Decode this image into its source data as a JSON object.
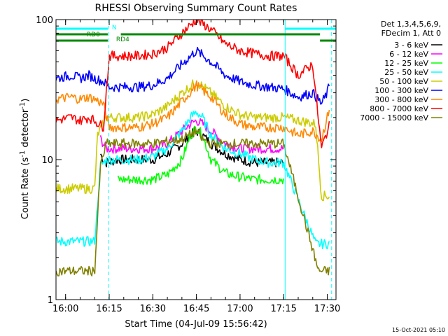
{
  "chart_data": {
    "type": "line",
    "title": "RHESSI Observing Summary Count Rates",
    "xlabel": "Start Time (04-Jul-09 15:56:42)",
    "ylabel": "Count Rate (s⁻¹ detector⁻¹)",
    "y_scale": "log",
    "ylim": [
      1,
      100
    ],
    "xlim": [
      "15:56:42",
      "17:33:00"
    ],
    "x_ticks": [
      "16:00",
      "16:15",
      "16:30",
      "16:45",
      "17:00",
      "17:15",
      "17:30"
    ],
    "y_ticks": [
      "1",
      "10",
      "100"
    ],
    "grid": false,
    "legend_position": "right",
    "legend_header": [
      "Det 1,3,4,5,6,9,",
      "FDecim 1, Att 0"
    ],
    "timestamp": "15-Oct-2021 05:10",
    "state_bars": [
      {
        "label": "N",
        "color": "#00ffff",
        "segments": [
          [
            "15:56:42",
            "16:14:30"
          ],
          [
            "17:15:30",
            "17:33:00"
          ]
        ]
      },
      {
        "label": "RD0",
        "color": "#008800",
        "segments": [
          [
            "15:56:42",
            "16:14:30"
          ],
          [
            "16:19:00",
            "17:27:30"
          ]
        ]
      },
      {
        "label": "RD4",
        "color": "#008800",
        "segments": [
          [
            "15:56:42",
            "16:14:30"
          ],
          [
            "17:27:30",
            "17:33:00"
          ]
        ]
      }
    ],
    "vertical_markers": [
      {
        "time": "16:14:50",
        "color": "#00ffff",
        "style": "dashed"
      },
      {
        "time": "17:15:30",
        "color": "#00ffff",
        "style": "solid"
      },
      {
        "time": "17:31:30",
        "color": "#00ffff",
        "style": "dashed"
      }
    ],
    "series": [
      {
        "name": "3 - 6 keV",
        "color": "#000000",
        "x": [
          "16:12",
          "16:13",
          "16:14",
          "16:18",
          "16:25",
          "16:30",
          "16:35",
          "16:40",
          "16:43",
          "16:45",
          "16:47",
          "16:50",
          "16:55",
          "17:00",
          "17:05",
          "17:10",
          "17:15"
        ],
        "y": [
          11,
          10,
          9.5,
          10,
          10,
          10,
          11,
          13,
          15,
          16,
          15,
          13,
          11,
          10,
          9.5,
          9.5,
          9.5
        ]
      },
      {
        "name": "6 - 12 keV",
        "color": "#ff00ff",
        "x": [
          "16:12",
          "16:13",
          "16:14",
          "16:18",
          "16:25",
          "16:30",
          "16:35",
          "16:40",
          "16:43",
          "16:45",
          "16:47",
          "16:50",
          "16:55",
          "17:00",
          "17:05",
          "17:10",
          "17:15"
        ],
        "y": [
          14,
          13,
          12,
          12,
          12,
          12,
          13,
          16,
          18,
          19,
          18,
          16,
          13,
          12,
          12,
          12,
          12
        ]
      },
      {
        "name": "12 - 25 keV",
        "color": "#00ff00",
        "x": [
          "16:18",
          "16:25",
          "16:30",
          "16:35",
          "16:40",
          "16:43",
          "16:45",
          "16:47",
          "16:50",
          "16:55",
          "17:00",
          "17:05",
          "17:10",
          "17:15"
        ],
        "y": [
          7.2,
          7.2,
          7.2,
          7.8,
          10,
          15,
          17,
          15,
          10,
          8,
          7.5,
          7.2,
          7.2,
          7.2
        ]
      },
      {
        "name": "25 - 50 keV",
        "color": "#00ffff",
        "x": [
          "15:56:42",
          "16:05",
          "16:10",
          "16:12",
          "16:14",
          "16:18",
          "16:25",
          "16:30",
          "16:35",
          "16:40",
          "16:43",
          "16:45",
          "16:47",
          "16:50",
          "16:55",
          "17:00",
          "17:05",
          "17:10",
          "17:15",
          "17:26",
          "17:28",
          "17:31"
        ],
        "y": [
          2.6,
          2.6,
          2.6,
          9,
          10,
          10,
          10,
          10.5,
          12,
          16,
          20,
          22,
          20,
          15,
          12,
          11,
          10,
          9.5,
          9.5,
          2.5,
          2.5,
          2.5
        ]
      },
      {
        "name": "50 - 100 keV",
        "color": "#cccc00",
        "x": [
          "15:56:42",
          "16:05",
          "16:10",
          "16:11",
          "16:14",
          "16:18",
          "16:25",
          "16:30",
          "16:35",
          "16:40",
          "16:45",
          "16:50",
          "16:55",
          "17:00",
          "17:05",
          "17:10",
          "17:15",
          "17:26",
          "17:28",
          "17:31"
        ],
        "y": [
          6.2,
          6.2,
          6.2,
          15,
          20,
          20,
          20,
          21,
          24,
          30,
          36,
          30,
          24,
          21,
          20,
          20,
          20,
          18,
          5.5,
          5.5
        ]
      },
      {
        "name": "100 - 300 keV",
        "color": "#0000ff",
        "x": [
          "15:56:42",
          "16:02",
          "16:05",
          "16:08",
          "16:10",
          "16:13",
          "16:15",
          "16:20",
          "16:25",
          "16:30",
          "16:35",
          "16:40",
          "16:45",
          "16:50",
          "16:55",
          "17:00",
          "17:05",
          "17:10",
          "17:15",
          "17:20",
          "17:25",
          "17:28",
          "17:30",
          "17:31"
        ],
        "y": [
          38,
          40,
          38,
          40,
          38,
          36,
          33,
          33,
          33,
          34,
          38,
          48,
          60,
          50,
          40,
          36,
          34,
          33,
          32,
          28,
          30,
          25,
          30,
          36
        ]
      },
      {
        "name": "300 - 800 keV",
        "color": "#ff8800",
        "x": [
          "15:56:42",
          "16:02",
          "16:05",
          "16:08",
          "16:10",
          "16:13",
          "16:15",
          "16:20",
          "16:25",
          "16:30",
          "16:35",
          "16:40",
          "16:45",
          "16:50",
          "16:55",
          "17:00",
          "17:05",
          "17:10",
          "17:15",
          "17:20",
          "17:25",
          "17:28",
          "17:30",
          "17:31"
        ],
        "y": [
          27,
          28,
          27,
          28,
          27,
          25,
          17,
          17,
          17,
          18,
          20,
          26,
          34,
          28,
          21,
          18,
          17,
          17,
          17,
          15,
          16,
          14,
          20,
          25
        ]
      },
      {
        "name": "800 - 7000 keV",
        "color": "#ff0000",
        "x": [
          "15:56:42",
          "16:02",
          "16:05",
          "16:08",
          "16:10",
          "16:13",
          "16:15",
          "16:20",
          "16:25",
          "16:30",
          "16:35",
          "16:40",
          "16:45",
          "16:50",
          "16:55",
          "17:00",
          "17:05",
          "17:10",
          "17:15",
          "17:20",
          "17:25",
          "17:28",
          "17:30",
          "17:31"
        ],
        "y": [
          19,
          20,
          19,
          20,
          19,
          17,
          55,
          55,
          55,
          57,
          63,
          80,
          100,
          85,
          67,
          60,
          57,
          55,
          55,
          40,
          48,
          12,
          16,
          18
        ]
      },
      {
        "name": "7000 - 15000 keV",
        "color": "#808000",
        "x": [
          "15:56:42",
          "16:05",
          "16:10",
          "16:12",
          "16:14",
          "16:18",
          "16:25",
          "16:30",
          "16:40",
          "16:45",
          "16:47",
          "16:50",
          "16:55",
          "17:00",
          "17:05",
          "17:10",
          "17:15",
          "17:27",
          "17:28",
          "17:31"
        ],
        "y": [
          1.6,
          1.6,
          1.6,
          9,
          13,
          13,
          13,
          13,
          14,
          16,
          14,
          13,
          13,
          13,
          13,
          13,
          13,
          1.6,
          1.6,
          1.6
        ]
      }
    ]
  }
}
